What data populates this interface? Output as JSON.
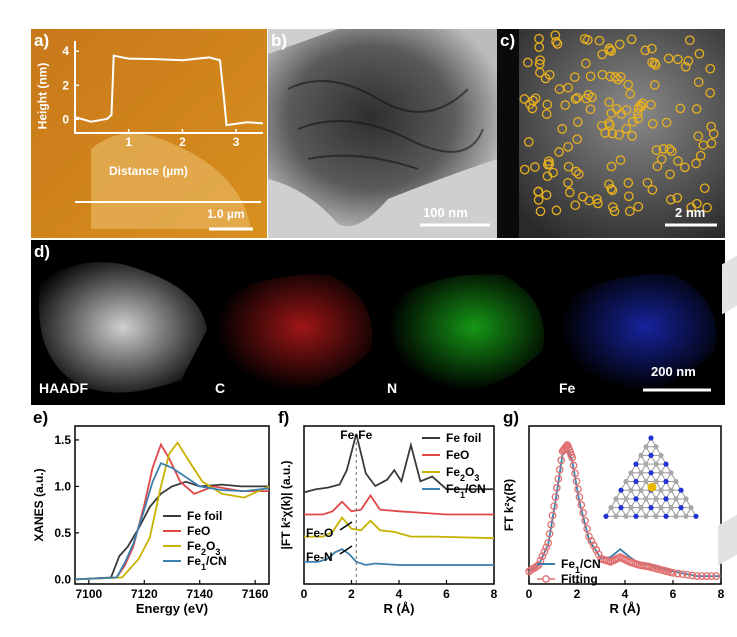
{
  "colors": {
    "afm_bg": "#d8901e",
    "fe_foil": "#3a3a3a",
    "feo": "#e04848",
    "fe2o3": "#c9b100",
    "fe1cn": "#3d7fae",
    "fitting": "#e07070",
    "map_c": "#ff2020",
    "map_n": "#20e020",
    "map_fe": "#3040ff",
    "atom_n": "#2433d4",
    "atom_c": "#a8a8a8",
    "atom_fe": "#e8b800"
  },
  "panel_a": {
    "letter": "a)",
    "xlabel": "Distance (µm)",
    "ylabel": "Height (nm)",
    "xticks": [
      "1",
      "2",
      "3"
    ],
    "yticks": [
      "0",
      "2",
      "4"
    ],
    "scalebar": "1.0 µm",
    "chart_data": {
      "type": "line",
      "x": [
        0,
        0.3,
        0.6,
        0.68,
        0.72,
        1.0,
        1.5,
        2.0,
        2.5,
        2.7,
        2.78,
        2.82,
        3.2,
        3.5
      ],
      "y": [
        0.1,
        -0.1,
        0.0,
        0.3,
        3.7,
        3.6,
        3.5,
        3.5,
        3.6,
        3.5,
        1.0,
        -0.3,
        -0.2,
        -0.2
      ],
      "xlim": [
        0,
        3.5
      ],
      "ylim": [
        -0.8,
        4.6
      ]
    }
  },
  "panel_b": {
    "letter": "b)",
    "scalebar": "100 nm"
  },
  "panel_c": {
    "letter": "c)",
    "scalebar": "2 nm",
    "circle_color": "#e8b020"
  },
  "panel_d": {
    "letter": "d)",
    "labels": [
      "HAADF",
      "C",
      "N",
      "Fe"
    ],
    "scalebar": "200 nm"
  },
  "panel_e": {
    "letter": "e)",
    "xlabel": "Energy (eV)",
    "ylabel": "XANES (a.u.)",
    "xticks": [
      "7100",
      "7120",
      "7140",
      "7160"
    ],
    "yticks": [
      "0.0",
      "0.5",
      "1.0",
      "1.5"
    ],
    "legend": [
      "Fe foil",
      "FeO",
      "Fe2O3",
      "Fe1/CN"
    ],
    "chart_data": {
      "type": "line",
      "xlim": [
        7095,
        7165
      ],
      "ylim": [
        -0.05,
        1.65
      ],
      "series": [
        {
          "name": "Fe foil",
          "x": [
            7095,
            7108,
            7111,
            7114,
            7118,
            7122,
            7126,
            7130,
            7135,
            7140,
            7148,
            7155,
            7165
          ],
          "y": [
            0.0,
            0.02,
            0.25,
            0.35,
            0.55,
            0.78,
            0.92,
            1.0,
            1.05,
            1.0,
            1.02,
            1.0,
            1.0
          ]
        },
        {
          "name": "FeO",
          "x": [
            7095,
            7110,
            7113,
            7116,
            7120,
            7123,
            7126,
            7129,
            7133,
            7138,
            7145,
            7155,
            7165
          ],
          "y": [
            0.0,
            0.02,
            0.15,
            0.35,
            0.8,
            1.2,
            1.45,
            1.3,
            1.05,
            0.92,
            1.0,
            0.95,
            0.95
          ]
        },
        {
          "name": "Fe2O3",
          "x": [
            7095,
            7112,
            7115,
            7118,
            7122,
            7126,
            7129,
            7132,
            7136,
            7141,
            7148,
            7156,
            7165
          ],
          "y": [
            0.0,
            0.02,
            0.12,
            0.22,
            0.45,
            1.0,
            1.35,
            1.47,
            1.28,
            1.05,
            0.92,
            0.88,
            1.0
          ]
        },
        {
          "name": "Fe1/CN",
          "x": [
            7095,
            7110,
            7113,
            7116,
            7120,
            7123,
            7126,
            7130,
            7135,
            7140,
            7148,
            7156,
            7165
          ],
          "y": [
            0.0,
            0.02,
            0.18,
            0.38,
            0.75,
            1.05,
            1.25,
            1.2,
            1.1,
            1.0,
            0.96,
            0.95,
            0.98
          ]
        }
      ]
    }
  },
  "panel_f": {
    "letter": "f)",
    "xlabel": "R (Å)",
    "ylabel": "|FT k²χ(k)| (a.u.)",
    "xticks": [
      "0",
      "2",
      "4",
      "6",
      "8"
    ],
    "legend": [
      "Fe foil",
      "FeO",
      "Fe2O3",
      "Fe1/CN"
    ],
    "annotations": [
      "Fe-Fe",
      "Fe-O",
      "Fe-N"
    ],
    "chart_data": {
      "type": "line",
      "xlim": [
        0,
        8
      ],
      "ylim": [
        0,
        1
      ],
      "series": [
        {
          "name": "Fe foil",
          "x": [
            0,
            0.5,
            1.0,
            1.5,
            1.8,
            2.2,
            2.6,
            3.0,
            3.5,
            3.8,
            4.1,
            4.5,
            4.9,
            5.4,
            6.0,
            7.0,
            8.0
          ],
          "y": [
            0.58,
            0.6,
            0.61,
            0.63,
            0.72,
            0.95,
            0.7,
            0.62,
            0.66,
            0.72,
            0.65,
            0.88,
            0.65,
            0.68,
            0.6,
            0.6,
            0.6
          ]
        },
        {
          "name": "FeO",
          "x": [
            0,
            0.8,
            1.2,
            1.6,
            2.0,
            2.4,
            2.8,
            3.2,
            4.0,
            5.0,
            6.0,
            8.0
          ],
          "y": [
            0.44,
            0.44,
            0.46,
            0.52,
            0.46,
            0.47,
            0.56,
            0.47,
            0.46,
            0.45,
            0.44,
            0.44
          ]
        },
        {
          "name": "Fe2O3",
          "x": [
            0,
            0.8,
            1.2,
            1.6,
            2.0,
            2.4,
            2.8,
            3.2,
            3.8,
            4.5,
            5.5,
            8.0
          ],
          "y": [
            0.3,
            0.3,
            0.33,
            0.42,
            0.35,
            0.34,
            0.4,
            0.34,
            0.33,
            0.3,
            0.3,
            0.29
          ]
        },
        {
          "name": "Fe1/CN",
          "x": [
            0,
            0.6,
            1.0,
            1.3,
            1.6,
            1.9,
            2.2,
            2.6,
            3.0,
            4.0,
            6.0,
            8.0
          ],
          "y": [
            0.14,
            0.14,
            0.16,
            0.2,
            0.22,
            0.19,
            0.14,
            0.12,
            0.13,
            0.12,
            0.12,
            0.12
          ]
        }
      ]
    }
  },
  "panel_g": {
    "letter": "g)",
    "xlabel": "R (Å)",
    "ylabel": "FT k²χ(R)",
    "xticks": [
      "0",
      "2",
      "4",
      "6",
      "8"
    ],
    "legend": [
      "Fe1/CN",
      "Fitting"
    ],
    "chart_data": {
      "type": "line",
      "xlim": [
        0,
        8
      ],
      "ylim": [
        0,
        1
      ],
      "series": [
        {
          "name": "Fe1/CN",
          "x": [
            0,
            0.4,
            0.8,
            1.1,
            1.4,
            1.6,
            1.8,
            2.1,
            2.5,
            3.0,
            3.4,
            3.8,
            4.2,
            4.6,
            5.0,
            5.5,
            6.0,
            7.0,
            8.0
          ],
          "y": [
            0.08,
            0.12,
            0.25,
            0.52,
            0.82,
            0.86,
            0.78,
            0.52,
            0.28,
            0.16,
            0.17,
            0.22,
            0.17,
            0.13,
            0.12,
            0.1,
            0.08,
            0.05,
            0.05
          ]
        },
        {
          "name": "Fitting",
          "x": [
            0,
            0.4,
            0.8,
            1.1,
            1.4,
            1.6,
            1.8,
            2.1,
            2.5,
            3.0,
            3.4,
            3.8,
            4.2,
            4.6,
            5.0,
            5.5,
            6.0,
            7.0,
            8.0
          ],
          "y": [
            0.08,
            0.12,
            0.26,
            0.55,
            0.84,
            0.88,
            0.8,
            0.55,
            0.3,
            0.16,
            0.14,
            0.17,
            0.14,
            0.12,
            0.11,
            0.09,
            0.07,
            0.05,
            0.05
          ]
        }
      ]
    }
  }
}
